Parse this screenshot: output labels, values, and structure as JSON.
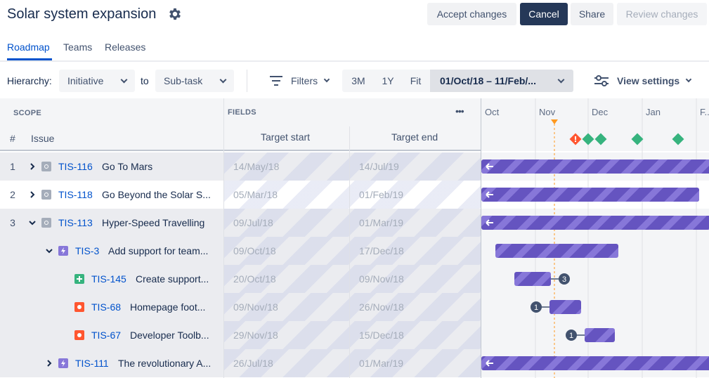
{
  "header": {
    "title": "Solar system expansion",
    "buttons": {
      "accept": "Accept changes",
      "cancel": "Cancel",
      "share": "Share",
      "review": "Review changes"
    }
  },
  "tabs": [
    {
      "label": "Roadmap"
    },
    {
      "label": "Teams"
    },
    {
      "label": "Releases"
    }
  ],
  "toolbar": {
    "hierarchy_label": "Hierarchy:",
    "hierarchy_from": "Initiative",
    "to_label": "to",
    "hierarchy_to": "Sub-task",
    "filters_label": "Filters",
    "zoom": [
      "3M",
      "1Y",
      "Fit"
    ],
    "date_range": "01/Oct/18 – 11/Feb/...",
    "view_settings": "View settings"
  },
  "grid": {
    "scope_label": "SCOPE",
    "fields_label": "FIELDS",
    "col_num": "#",
    "col_issue": "Issue",
    "col_target_start": "Target start",
    "col_target_end": "Target end",
    "more_label": "•••"
  },
  "timeline": {
    "months": [
      "Oct",
      "Nov",
      "Dec",
      "Jan",
      "F..."
    ]
  },
  "rows": [
    {
      "num": "1",
      "key": "TIS-116",
      "summary": "Go To Mars",
      "start": "14/May/18",
      "end": "14/Jul/19"
    },
    {
      "num": "2",
      "key": "TIS-118",
      "summary": "Go Beyond the Solar S...",
      "start": "05/Mar/18",
      "end": "01/Feb/19"
    },
    {
      "num": "3",
      "key": "TIS-113",
      "summary": "Hyper-Speed Travelling",
      "start": "09/Jul/18",
      "end": "01/Mar/19"
    },
    {
      "num": "",
      "key": "TIS-3",
      "summary": "Add support for team...",
      "start": "09/Oct/18",
      "end": "17/Dec/18"
    },
    {
      "num": "",
      "key": "TIS-145",
      "summary": "Create support...",
      "start": "20/Oct/18",
      "end": "09/Nov/18",
      "badge": "3"
    },
    {
      "num": "",
      "key": "TIS-68",
      "summary": "Homepage foot...",
      "start": "09/Nov/18",
      "end": "26/Nov/18",
      "badge": "1"
    },
    {
      "num": "",
      "key": "TIS-67",
      "summary": "Developer Toolb...",
      "start": "29/Nov/18",
      "end": "15/Dec/18",
      "badge": "1"
    },
    {
      "num": "",
      "key": "TIS-111",
      "summary": "The revolutionary A...",
      "start": "26/Jul/18",
      "end": "01/Mar/19"
    }
  ],
  "colors": {
    "accent": "#0052CC",
    "bar": "#6554C0",
    "bar_light": "#8777D9",
    "milestone_green": "#36B37E",
    "milestone_red": "#FF5630",
    "today_line": "#FF991F"
  }
}
